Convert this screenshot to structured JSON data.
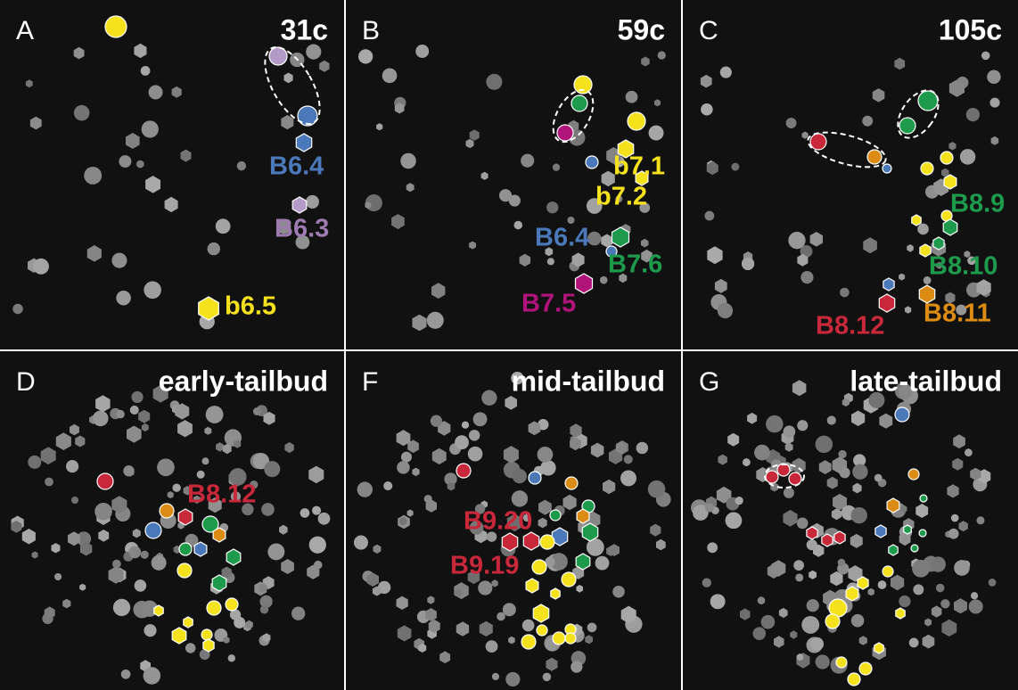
{
  "panels": [
    {
      "letter": "A",
      "stage": "31c",
      "labels": [
        {
          "text": "B6.4",
          "color": "#4a78b8"
        },
        {
          "text": "B6.3",
          "color": "#9d7bb0"
        },
        {
          "text": "b6.5",
          "color": "#f5e11c"
        }
      ]
    },
    {
      "letter": "B",
      "stage": "59c",
      "labels": [
        {
          "text": "b7.1",
          "color": "#f5e11c"
        },
        {
          "text": "b7.2",
          "color": "#f5e11c"
        },
        {
          "text": "B6.4",
          "color": "#4a78b8"
        },
        {
          "text": "B7.6",
          "color": "#1e9a4c"
        },
        {
          "text": "B7.5",
          "color": "#b0147a"
        }
      ]
    },
    {
      "letter": "C",
      "stage": "105c",
      "labels": [
        {
          "text": "B8.9",
          "color": "#1e9a4c"
        },
        {
          "text": "B8.10",
          "color": "#1e9a4c"
        },
        {
          "text": "B8.12",
          "color": "#c8283a"
        },
        {
          "text": "B8.11",
          "color": "#dc8c14"
        }
      ]
    },
    {
      "letter": "D",
      "stage": "early-tailbud",
      "labels": [
        {
          "text": "B8.12",
          "color": "#c8283a"
        }
      ]
    },
    {
      "letter": "F",
      "stage": "mid-tailbud",
      "labels": [
        {
          "text": "B9.20",
          "color": "#c8283a"
        },
        {
          "text": "B9.19",
          "color": "#c8283a"
        }
      ]
    },
    {
      "letter": "G",
      "stage": "late-tailbud",
      "labels": []
    }
  ]
}
